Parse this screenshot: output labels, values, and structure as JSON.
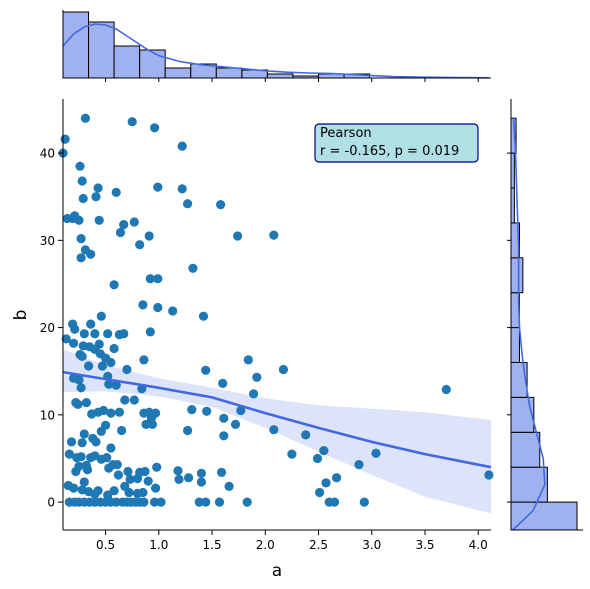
{
  "chart_data": {
    "type": "scatter",
    "kind": "jointplot",
    "xlabel": "a",
    "ylabel": "b",
    "xlim": [
      0.1,
      4.12
    ],
    "ylim": [
      -3.2,
      46.2
    ],
    "xticks": [
      0.5,
      1.0,
      1.5,
      2.0,
      2.5,
      3.0,
      3.5,
      4.0
    ],
    "xtick_labels": [
      "0.5",
      "1.0",
      "1.5",
      "2.0",
      "2.5",
      "3.0",
      "3.5",
      "4.0"
    ],
    "yticks": [
      0,
      10,
      20,
      30,
      40
    ],
    "ytick_labels": [
      "0",
      "10",
      "20",
      "30",
      "40"
    ],
    "colors": {
      "points": "#1f77b4",
      "regression": "#4169e1",
      "band": "#dde3f8",
      "hist_fill": "#9fb1ee",
      "kde": "#4169e1",
      "box_fill": "#b0e0e6",
      "box_edge": "#000080"
    },
    "annotation": {
      "title": "Pearson",
      "stat_text": "r = -0.165, p =  0.019",
      "position": "top-right"
    },
    "regression": {
      "x": [
        0.1,
        0.5,
        1.0,
        1.5,
        2.0,
        2.5,
        3.0,
        3.5,
        4.12
      ],
      "y": [
        14.9,
        14.1,
        13.1,
        12.0,
        10.2,
        8.5,
        6.9,
        5.5,
        4.0
      ],
      "lower": [
        12.6,
        12.7,
        12.1,
        10.9,
        8.5,
        5.8,
        3.1,
        0.6,
        -1.3
      ],
      "upper": [
        17.5,
        15.7,
        14.2,
        13.1,
        11.9,
        11.1,
        10.7,
        10.3,
        9.4
      ]
    },
    "marginal_x": {
      "bin_edges": [
        0.1,
        0.34,
        0.58,
        0.82,
        1.06,
        1.3,
        1.54,
        1.78,
        2.02,
        2.26,
        2.5,
        2.74,
        2.98,
        3.22,
        3.46,
        3.7,
        3.94,
        4.18
      ],
      "counts": [
        33,
        28,
        16,
        14,
        5,
        7,
        5,
        4,
        2,
        1,
        2,
        2,
        0,
        0,
        0,
        0,
        0
      ],
      "kde_x": [
        0.1,
        0.2,
        0.3,
        0.4,
        0.5,
        0.6,
        0.7,
        0.8,
        0.9,
        1.0,
        1.2,
        1.4,
        1.6,
        1.8,
        2.0,
        2.2,
        2.4,
        2.6,
        2.8,
        3.0,
        3.2,
        3.5,
        3.8,
        4.1
      ],
      "kde_y": [
        16,
        22,
        25.5,
        27,
        26.5,
        24.5,
        21,
        17.5,
        14,
        11.2,
        8.2,
        6.6,
        5.6,
        4.6,
        3.6,
        2.9,
        2.5,
        2.3,
        1.8,
        1.2,
        0.7,
        0.4,
        0.2,
        0.1
      ]
    },
    "marginal_y": {
      "bin_edges": [
        -4,
        0,
        4,
        8,
        12,
        16,
        20,
        24,
        28,
        32,
        36,
        40,
        44
      ],
      "counts": [
        78,
        43,
        34,
        27,
        19,
        10,
        10,
        14,
        10,
        4,
        4,
        6
      ],
      "kde_y": [
        -4,
        -1,
        2,
        5,
        8,
        11,
        14,
        17,
        20,
        23,
        26,
        29,
        32,
        35,
        38,
        41,
        44
      ],
      "kde_x": [
        2,
        26,
        40,
        38,
        30,
        22,
        17,
        13,
        10,
        9,
        9,
        9,
        8,
        7,
        6,
        5,
        3
      ]
    },
    "points": [
      [
        0.1,
        40
      ],
      [
        0.12,
        41.6
      ],
      [
        0.14,
        32.5
      ],
      [
        0.19,
        32.5
      ],
      [
        0.21,
        32.8
      ],
      [
        0.25,
        32.3
      ],
      [
        0.26,
        38.5
      ],
      [
        0.28,
        36.8
      ],
      [
        0.29,
        34.8
      ],
      [
        0.31,
        44
      ],
      [
        0.41,
        35
      ],
      [
        0.43,
        36
      ],
      [
        0.44,
        32.3
      ],
      [
        0.6,
        35.5
      ],
      [
        0.75,
        43.6
      ],
      [
        0.96,
        42.9
      ],
      [
        0.99,
        36.1
      ],
      [
        1.22,
        35.9
      ],
      [
        1.22,
        40.8
      ],
      [
        1.27,
        34.2
      ],
      [
        1.58,
        34.1
      ],
      [
        0.27,
        30.2
      ],
      [
        0.27,
        28
      ],
      [
        0.31,
        28.9
      ],
      [
        0.36,
        28.4
      ],
      [
        0.64,
        30.9
      ],
      [
        0.67,
        31.8
      ],
      [
        0.77,
        32.1
      ],
      [
        0.82,
        29.5
      ],
      [
        0.91,
        30.5
      ],
      [
        1.74,
        30.5
      ],
      [
        2.08,
        30.6
      ],
      [
        1.32,
        26.8
      ],
      [
        0.92,
        25.6
      ],
      [
        0.99,
        25.6
      ],
      [
        0.58,
        24.9
      ],
      [
        0.85,
        22.6
      ],
      [
        0.99,
        22.3
      ],
      [
        1.13,
        21.9
      ],
      [
        1.42,
        21.3
      ],
      [
        0.13,
        18.7
      ],
      [
        0.19,
        20.4
      ],
      [
        0.21,
        19.8
      ],
      [
        0.3,
        19.3
      ],
      [
        0.36,
        20.4
      ],
      [
        0.4,
        19.3
      ],
      [
        0.44,
        18.1
      ],
      [
        0.46,
        21.3
      ],
      [
        0.52,
        19.3
      ],
      [
        0.63,
        19.2
      ],
      [
        0.67,
        19.3
      ],
      [
        0.92,
        19.5
      ],
      [
        0.2,
        18.2
      ],
      [
        0.29,
        17.9
      ],
      [
        0.35,
        17.8
      ],
      [
        0.4,
        17.5
      ],
      [
        0.45,
        17
      ],
      [
        0.5,
        16.5
      ],
      [
        0.55,
        16
      ],
      [
        0.58,
        17.6
      ],
      [
        0.26,
        16.9
      ],
      [
        0.28,
        16.7
      ],
      [
        0.34,
        15.6
      ],
      [
        0.47,
        15.6
      ],
      [
        0.52,
        14.4
      ],
      [
        0.53,
        13.5
      ],
      [
        0.6,
        13.4
      ],
      [
        0.7,
        15.2
      ],
      [
        0.86,
        16.3
      ],
      [
        1.44,
        15.1
      ],
      [
        1.6,
        13.6
      ],
      [
        1.84,
        16.3
      ],
      [
        1.92,
        14.3
      ],
      [
        2.17,
        15.2
      ],
      [
        0.2,
        14.2
      ],
      [
        0.25,
        14
      ],
      [
        0.27,
        13.1
      ],
      [
        0.24,
        11.2
      ],
      [
        0.22,
        11.4
      ],
      [
        0.32,
        11.4
      ],
      [
        0.37,
        10.1
      ],
      [
        0.43,
        10.3
      ],
      [
        0.48,
        10.5
      ],
      [
        0.55,
        10.2
      ],
      [
        0.63,
        10.3
      ],
      [
        0.68,
        11.7
      ],
      [
        0.77,
        11.7
      ],
      [
        0.84,
        13
      ],
      [
        0.86,
        10.2
      ],
      [
        0.91,
        10.3
      ],
      [
        0.93,
        9.6
      ],
      [
        0.97,
        10.2
      ],
      [
        1.31,
        10.6
      ],
      [
        1.45,
        10.4
      ],
      [
        1.61,
        9.6
      ],
      [
        1.72,
        8.9
      ],
      [
        1.77,
        10.5
      ],
      [
        1.89,
        12.4
      ],
      [
        2.08,
        8.3
      ],
      [
        2.38,
        7.7
      ],
      [
        2.55,
        5.9
      ],
      [
        2.49,
        5
      ],
      [
        2.25,
        5.5
      ],
      [
        3.7,
        12.9
      ],
      [
        0.5,
        8.8
      ],
      [
        0.65,
        8.2
      ],
      [
        0.88,
        8.9
      ],
      [
        0.94,
        8.9
      ],
      [
        1.27,
        8.2
      ],
      [
        1.61,
        7.6
      ],
      [
        0.18,
        6.9
      ],
      [
        0.28,
        6.8
      ],
      [
        0.3,
        7.8
      ],
      [
        0.38,
        7.3
      ],
      [
        0.41,
        6.9
      ],
      [
        0.46,
        8.1
      ],
      [
        0.55,
        6.2
      ],
      [
        0.16,
        5.5
      ],
      [
        0.23,
        5.1
      ],
      [
        0.25,
        4.1
      ],
      [
        0.27,
        5.2
      ],
      [
        0.32,
        4.2
      ],
      [
        0.36,
        5.1
      ],
      [
        0.4,
        5.3
      ],
      [
        0.46,
        4.9
      ],
      [
        0.51,
        5.1
      ],
      [
        0.57,
        4.3
      ],
      [
        0.61,
        4.3
      ],
      [
        0.71,
        3.5
      ],
      [
        0.82,
        3.4
      ],
      [
        0.87,
        3.5
      ],
      [
        0.98,
        4
      ],
      [
        1.18,
        3.6
      ],
      [
        1.28,
        2.8
      ],
      [
        1.4,
        3.3
      ],
      [
        1.59,
        3.4
      ],
      [
        0.22,
        3.5
      ],
      [
        0.33,
        3.7
      ],
      [
        0.53,
        3.9
      ],
      [
        0.62,
        3.1
      ],
      [
        0.73,
        2.6
      ],
      [
        0.8,
        2.7
      ],
      [
        0.9,
        2.4
      ],
      [
        1.19,
        2.6
      ],
      [
        1.4,
        2.3
      ],
      [
        1.66,
        1.8
      ],
      [
        2.57,
        2.2
      ],
      [
        2.67,
        2.8
      ],
      [
        2.88,
        4.3
      ],
      [
        3.04,
        5.6
      ],
      [
        4.1,
        3.1
      ],
      [
        0.15,
        1.9
      ],
      [
        0.2,
        1.6
      ],
      [
        0.28,
        1.4
      ],
      [
        0.3,
        2.3
      ],
      [
        0.34,
        1.2
      ],
      [
        0.4,
        0.9
      ],
      [
        0.43,
        1.3
      ],
      [
        0.52,
        0.8
      ],
      [
        0.58,
        1.3
      ],
      [
        0.68,
        1.8
      ],
      [
        0.72,
        1.1
      ],
      [
        0.8,
        1.0
      ],
      [
        0.85,
        1.1
      ],
      [
        0.97,
        1.6
      ],
      [
        2.51,
        1.1
      ],
      [
        0.16,
        0
      ],
      [
        0.21,
        0
      ],
      [
        0.25,
        0
      ],
      [
        0.3,
        0
      ],
      [
        0.35,
        0
      ],
      [
        0.4,
        0
      ],
      [
        0.45,
        0
      ],
      [
        0.5,
        0
      ],
      [
        0.55,
        0
      ],
      [
        0.6,
        0
      ],
      [
        0.66,
        0
      ],
      [
        0.7,
        0
      ],
      [
        0.74,
        0
      ],
      [
        0.78,
        0
      ],
      [
        0.82,
        0
      ],
      [
        0.86,
        0
      ],
      [
        0.96,
        0
      ],
      [
        1.02,
        0
      ],
      [
        1.38,
        0
      ],
      [
        1.44,
        0
      ],
      [
        1.57,
        0
      ],
      [
        1.83,
        0
      ],
      [
        2.6,
        0
      ],
      [
        2.65,
        0
      ],
      [
        2.93,
        0
      ]
    ]
  }
}
